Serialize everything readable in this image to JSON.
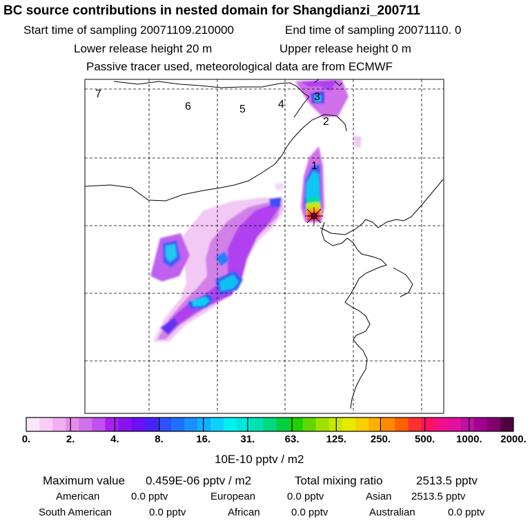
{
  "header": {
    "title": "BC  source contributions in nested domain for Shangdianzi_200711",
    "start_time": "Start time of sampling 20071109.210000",
    "end_time": "End time of sampling 20071110.     0",
    "lower_height": "Lower release height   20 m",
    "upper_height": "Upper release height    0 m",
    "tracer_info": "Passive tracer used, meteorological data are from ECMWF"
  },
  "map": {
    "region_labels": [
      "7",
      "6",
      "5",
      "4",
      "3",
      "2",
      "1"
    ],
    "receptor": "Shangdianzi"
  },
  "colorbar": {
    "ticks": [
      "0.",
      "2.",
      "4.",
      "8.",
      "16.",
      "31.",
      "63.",
      "125.",
      "250.",
      "500.",
      "1000.",
      "2000."
    ],
    "colors": [
      "#fde6fd",
      "#f8cef8",
      "#f0b0f0",
      "#e38ce8",
      "#d070ea",
      "#c050f0",
      "#a820f0",
      "#8a10f0",
      "#6a10f2",
      "#4a20f8",
      "#3050ff",
      "#2070ff",
      "#1a90ff",
      "#10b0ff",
      "#10d0ff",
      "#00f0f0",
      "#00e8d8",
      "#00e0b0",
      "#00d880",
      "#00d040",
      "#20d000",
      "#60d800",
      "#a0e000",
      "#c8e800",
      "#e8e800",
      "#f8d000",
      "#ffb000",
      "#ff8800",
      "#ff6000",
      "#ff3030",
      "#ff1060",
      "#f0108a",
      "#e010a0",
      "#c010a0",
      "#a00090",
      "#800070",
      "#500040"
    ],
    "unit": "10E-10 pptv / m2"
  },
  "summary": {
    "max_label": "Maximum value",
    "max_value": "0.459E-06 pptv / m2",
    "total_label": "Total mixing ratio",
    "total_value": "2513.5 pptv"
  },
  "regions": [
    {
      "name": "American",
      "value": "0.0 pptv"
    },
    {
      "name": "European",
      "value": "0.0 pptv"
    },
    {
      "name": "Asian",
      "value": "2513.5 pptv"
    },
    {
      "name": "South American",
      "value": "0.0 pptv"
    },
    {
      "name": "African",
      "value": "0.0 pptv"
    },
    {
      "name": "Australian",
      "value": "0.0 pptv"
    }
  ]
}
